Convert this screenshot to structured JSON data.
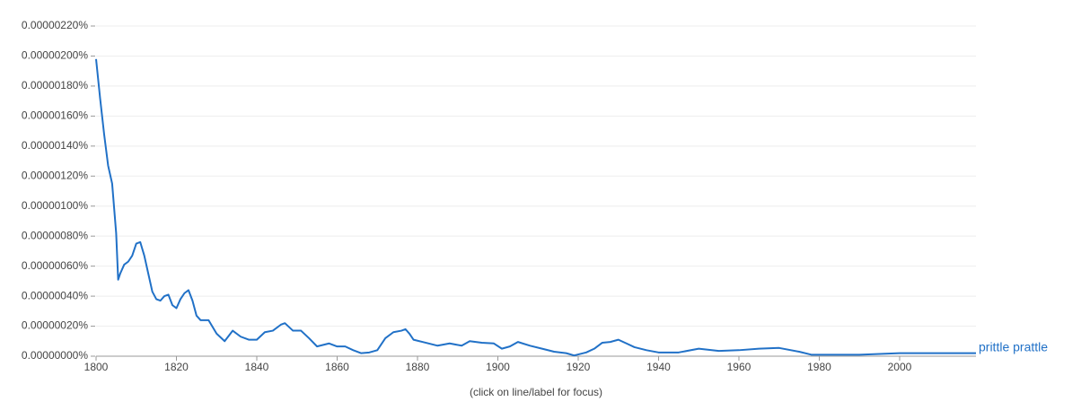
{
  "chart_data": {
    "type": "line",
    "note": "(click on line/label for focus)",
    "xlim": [
      1800,
      2019
    ],
    "xticks": [
      1800,
      1820,
      1840,
      1860,
      1880,
      1900,
      1920,
      1940,
      1960,
      1980,
      2000
    ],
    "ylim": [
      0,
      2.2e-06
    ],
    "yticks": [
      {
        "value": 0,
        "label": "0.00000000%"
      },
      {
        "value": 2e-07,
        "label": "0.00000020%"
      },
      {
        "value": 4e-07,
        "label": "0.00000040%"
      },
      {
        "value": 6e-07,
        "label": "0.00000060%"
      },
      {
        "value": 8e-07,
        "label": "0.00000080%"
      },
      {
        "value": 1e-06,
        "label": "0.00000100%"
      },
      {
        "value": 1.2e-06,
        "label": "0.00000120%"
      },
      {
        "value": 1.4e-06,
        "label": "0.00000140%"
      },
      {
        "value": 1.6e-06,
        "label": "0.00000160%"
      },
      {
        "value": 1.8e-06,
        "label": "0.00000180%"
      },
      {
        "value": 2e-06,
        "label": "0.00000200%"
      },
      {
        "value": 2.2e-06,
        "label": "0.00000220%"
      }
    ],
    "grid": true,
    "x": [
      1800,
      1801,
      1802,
      1803,
      1804,
      1805,
      1805.5,
      1806,
      1807,
      1808,
      1809,
      1810,
      1811,
      1812,
      1813,
      1814,
      1815,
      1816,
      1817,
      1818,
      1819,
      1820,
      1821,
      1822,
      1823,
      1824,
      1825,
      1826,
      1828,
      1830,
      1832,
      1834,
      1836,
      1838,
      1840,
      1842,
      1844,
      1846,
      1847,
      1849,
      1851,
      1853,
      1855,
      1858,
      1860,
      1862,
      1864,
      1866,
      1868,
      1870,
      1872,
      1874,
      1876,
      1877,
      1878,
      1879,
      1882,
      1885,
      1888,
      1891,
      1893,
      1896,
      1899,
      1901,
      1903,
      1905,
      1908,
      1911,
      1914,
      1917,
      1919,
      1922,
      1924,
      1926,
      1928,
      1930,
      1932,
      1934,
      1937,
      1940,
      1945,
      1950,
      1955,
      1960,
      1965,
      1970,
      1975,
      1978,
      1985,
      1990,
      2000,
      2005,
      2010,
      2019
    ],
    "series": [
      {
        "name": "prittle prattle",
        "color": "#2171c7",
        "values": [
          1.98e-06,
          1.72e-06,
          1.48e-06,
          1.27e-06,
          1.15e-06,
          8.2e-07,
          5.1e-07,
          5.5e-07,
          6.1e-07,
          6.3e-07,
          6.7e-07,
          7.5e-07,
          7.6e-07,
          6.7e-07,
          5.5e-07,
          4.3e-07,
          3.8e-07,
          3.7e-07,
          4e-07,
          4.1e-07,
          3.4e-07,
          3.2e-07,
          3.8e-07,
          4.2e-07,
          4.4e-07,
          3.7e-07,
          2.7e-07,
          2.4e-07,
          2.4e-07,
          1.5e-07,
          1e-07,
          1.7e-07,
          1.3e-07,
          1.1e-07,
          1.1e-07,
          1.6e-07,
          1.7e-07,
          2.1e-07,
          2.2e-07,
          1.7e-07,
          1.7e-07,
          1.2e-07,
          6.5e-08,
          8.5e-08,
          6.5e-08,
          6.5e-08,
          4e-08,
          2e-08,
          2.5e-08,
          4e-08,
          1.2e-07,
          1.6e-07,
          1.7e-07,
          1.8e-07,
          1.5e-07,
          1.1e-07,
          9e-08,
          7e-08,
          8.5e-08,
          7e-08,
          1e-07,
          9e-08,
          8.5e-08,
          5e-08,
          6.5e-08,
          9.5e-08,
          7e-08,
          5e-08,
          3e-08,
          2e-08,
          5e-09,
          2.5e-08,
          5e-08,
          9e-08,
          9.5e-08,
          1.1e-07,
          8.5e-08,
          6e-08,
          4e-08,
          2.5e-08,
          2.5e-08,
          5e-08,
          3.5e-08,
          4e-08,
          5e-08,
          5.5e-08,
          3e-08,
          1e-08,
          1e-08,
          1e-08,
          2e-08,
          2e-08,
          2e-08,
          2e-08
        ]
      }
    ]
  }
}
